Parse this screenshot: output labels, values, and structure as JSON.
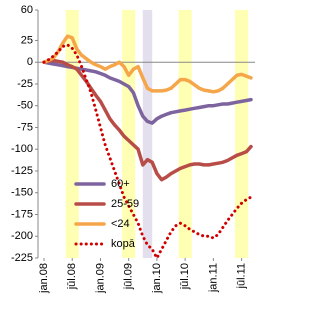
{
  "chart_data": {
    "type": "line",
    "categories": [
      "jan.08",
      null,
      null,
      null,
      null,
      null,
      "jūl.08",
      null,
      null,
      null,
      null,
      null,
      "jan.09",
      null,
      null,
      null,
      null,
      null,
      "jūl.09",
      null,
      null,
      null,
      null,
      null,
      "jan.10",
      null,
      null,
      null,
      null,
      null,
      "jūl.10",
      null,
      null,
      null,
      null,
      null,
      "jan.11",
      null,
      null,
      null,
      null,
      null,
      "jūl.11",
      null,
      null
    ],
    "series": [
      {
        "name": "60+",
        "color": "#7e649e",
        "dash": "solid",
        "values": [
          0,
          -1,
          -2,
          -3,
          -4,
          -5,
          -6,
          -7,
          -8,
          -9,
          -10,
          -11,
          -13,
          -15,
          -18,
          -20,
          -22,
          -25,
          -28,
          -35,
          -50,
          -62,
          -68,
          -70,
          -65,
          -62,
          -60,
          -58,
          -57,
          -56,
          -55,
          -54,
          -53,
          -52,
          -51,
          -50,
          -50,
          -49,
          -48,
          -48,
          -47,
          -46,
          -45,
          -44,
          -43
        ]
      },
      {
        "name": "25-59",
        "color": "#b84d48",
        "dash": "solid",
        "values": [
          0,
          1,
          2,
          1,
          0,
          -3,
          -5,
          -8,
          -15,
          -22,
          -30,
          -38,
          -45,
          -55,
          -65,
          -72,
          -78,
          -85,
          -90,
          -95,
          -100,
          -118,
          -112,
          -115,
          -128,
          -135,
          -132,
          -128,
          -125,
          -122,
          -120,
          -118,
          -117,
          -117,
          -118,
          -118,
          -117,
          -116,
          -115,
          -113,
          -110,
          -107,
          -105,
          -103,
          -97
        ]
      },
      {
        "name": "<24",
        "color": "#f5a54a",
        "dash": "solid",
        "values": [
          0,
          2,
          5,
          12,
          22,
          30,
          28,
          15,
          8,
          4,
          0,
          -3,
          -5,
          -8,
          -5,
          -3,
          0,
          -5,
          -15,
          -8,
          -5,
          -18,
          -30,
          -33,
          -33,
          -33,
          -32,
          -30,
          -25,
          -20,
          -20,
          -22,
          -26,
          -30,
          -32,
          -33,
          -34,
          -33,
          -30,
          -25,
          -20,
          -15,
          -14,
          -16,
          -18
        ]
      },
      {
        "name": "kopā",
        "color": "#d00000",
        "dash": "dotted",
        "values": [
          0,
          3,
          7,
          12,
          18,
          20,
          16,
          8,
          -5,
          -20,
          -35,
          -55,
          -75,
          -95,
          -110,
          -125,
          -140,
          -155,
          -165,
          -175,
          -185,
          -200,
          -210,
          -215,
          -225,
          -215,
          -205,
          -195,
          -188,
          -185,
          -188,
          -192,
          -195,
          -198,
          -200,
          -200,
          -202,
          -198,
          -190,
          -182,
          -175,
          -168,
          -162,
          -158,
          -155
        ]
      }
    ],
    "ylim": [
      -225,
      60
    ],
    "yticks": [
      60,
      25,
      0,
      -25,
      -50,
      -75,
      -100,
      -125,
      -150,
      -175,
      -200,
      -225
    ],
    "grid": false,
    "legend": "lower-left"
  }
}
